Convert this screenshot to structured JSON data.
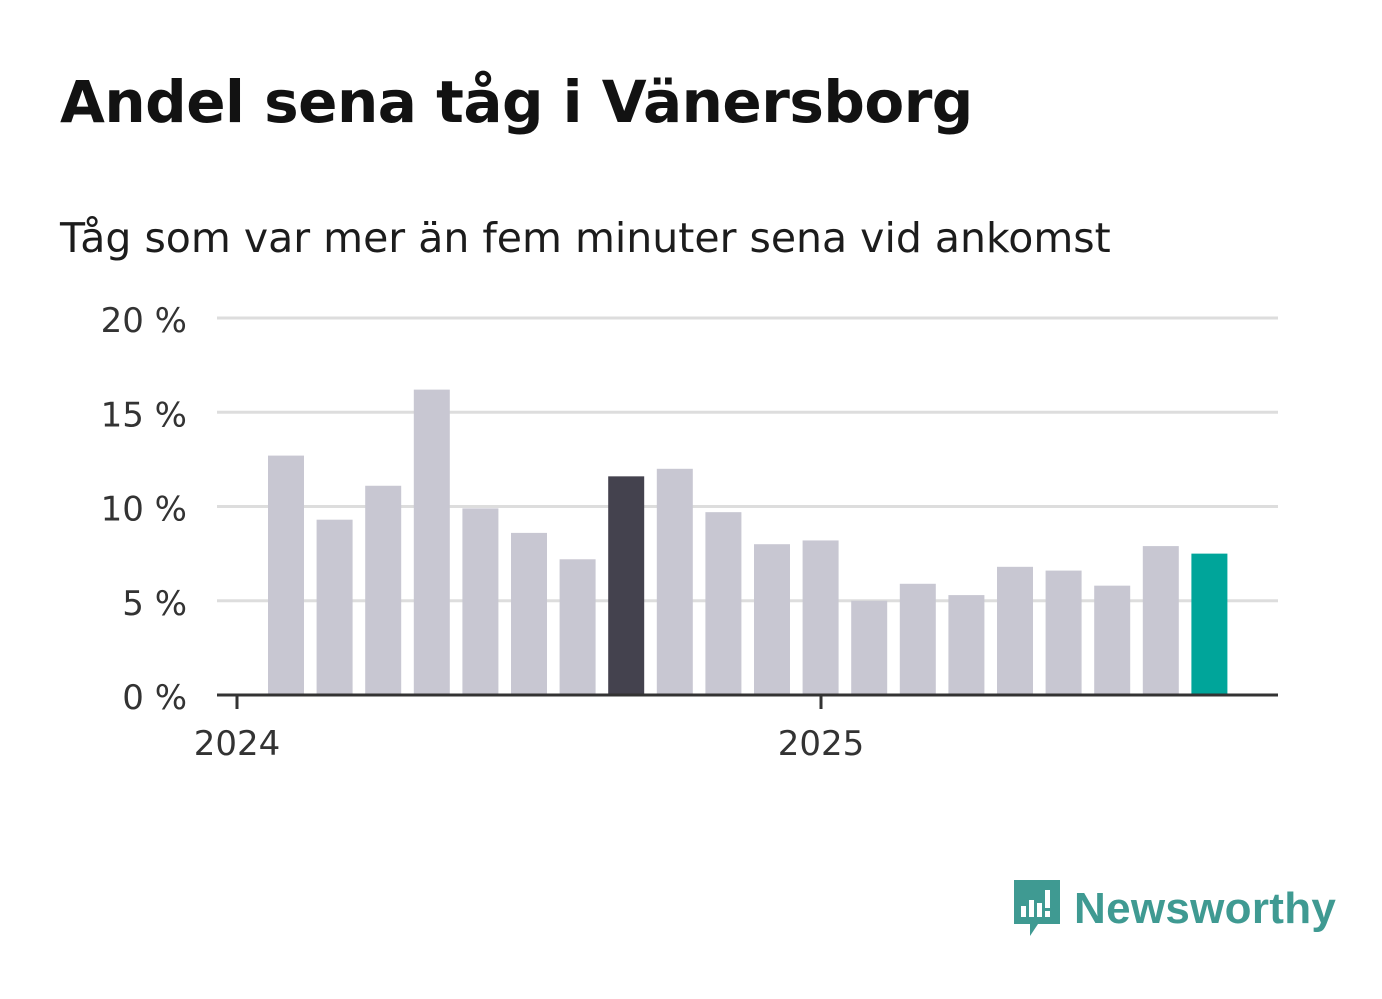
{
  "header": {
    "title": "Andel sena tåg i Vänersborg",
    "subtitle": "Tåg som var mer än fem minuter sena vid ankomst"
  },
  "brand": {
    "name": "Newsworthy"
  },
  "colors": {
    "bar_default": "#c8c7d2",
    "bar_highlight": "#44424e",
    "bar_latest": "#00a59a",
    "grid": "#dddddd",
    "axis": "#333333",
    "brand": "#3f9a92"
  },
  "chart_data": {
    "type": "bar",
    "title": "Andel sena tåg i Vänersborg",
    "subtitle": "Tåg som var mer än fem minuter sena vid ankomst",
    "xlabel": "",
    "ylabel": "",
    "ylim": [
      0,
      20
    ],
    "yticks": [
      0,
      5,
      10,
      15,
      20
    ],
    "ytick_labels": [
      "0 %",
      "5 %",
      "10 %",
      "15 %",
      "20 %"
    ],
    "xtick_labels": [
      "2024",
      "2025"
    ],
    "grid": true,
    "categories": [
      "2024-01",
      "2024-02",
      "2024-03",
      "2024-04",
      "2024-05",
      "2024-06",
      "2024-07",
      "2024-08",
      "2024-09",
      "2024-10",
      "2024-11",
      "2024-12",
      "2025-01",
      "2025-02",
      "2025-03",
      "2025-04",
      "2025-05",
      "2025-06",
      "2025-07",
      "2025-08"
    ],
    "values": [
      12.7,
      9.3,
      11.1,
      16.2,
      9.9,
      8.6,
      7.2,
      11.6,
      12.0,
      9.7,
      8.0,
      8.2,
      5.0,
      5.9,
      5.3,
      6.8,
      6.6,
      5.8,
      7.9,
      7.5
    ],
    "highlight_index": 7,
    "latest_index": 19
  }
}
